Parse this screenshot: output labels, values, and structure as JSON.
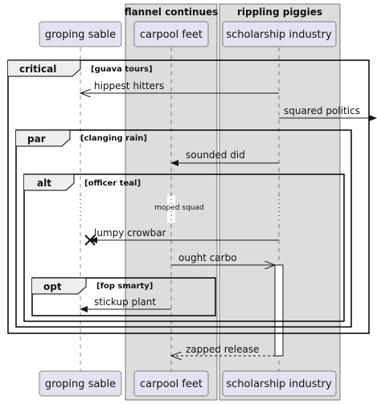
{
  "groups": [
    {
      "id": "g1",
      "title": "flannel continues"
    },
    {
      "id": "g2",
      "title": "rippling piggies"
    }
  ],
  "participants": [
    {
      "id": "p1",
      "label": "groping sable"
    },
    {
      "id": "p2",
      "label": "carpool feet"
    },
    {
      "id": "p3",
      "label": "scholarship industry"
    }
  ],
  "frames": [
    {
      "id": "critical",
      "keyword": "critical",
      "guard": "[guava tours]"
    },
    {
      "id": "par",
      "keyword": "par",
      "guard": "[clanging rain]"
    },
    {
      "id": "alt",
      "keyword": "alt",
      "guard": "[officer teal]"
    },
    {
      "id": "opt",
      "keyword": "opt",
      "guard": "[fop smarty]"
    }
  ],
  "messages": [
    {
      "id": "m1",
      "text": "hippest hitters"
    },
    {
      "id": "m2",
      "text": "squared politics"
    },
    {
      "id": "m3",
      "text": "sounded did"
    },
    {
      "id": "m4",
      "text": "lumpy crowbar"
    },
    {
      "id": "m5",
      "text": "ought carbo"
    },
    {
      "id": "m6",
      "text": "stickup plant"
    },
    {
      "id": "m7",
      "text": "zapped release"
    }
  ],
  "delay_note": "moped squad",
  "colors": {
    "participant_fill": "#E2E2F0",
    "participant_border": "#181818",
    "group_fill": "#DDDDDD",
    "group_border": "#000000",
    "line": "#181818",
    "background": "#FFFFFF"
  }
}
